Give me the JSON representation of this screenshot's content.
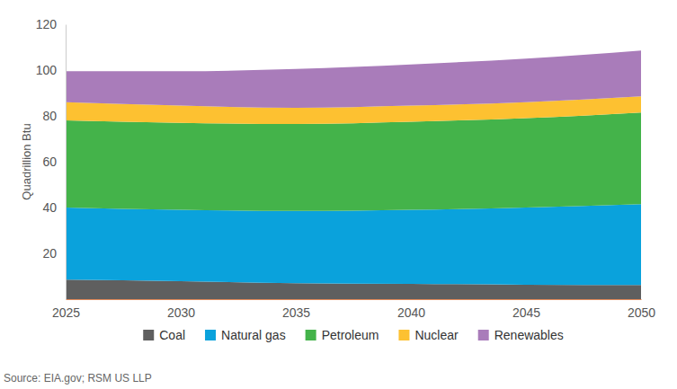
{
  "chart_data": {
    "type": "area",
    "stacked": true,
    "y_label": "Quadrillion Btu",
    "source": "Source: EIA.gov; RSM US LLP",
    "x": [
      2025,
      2030,
      2035,
      2040,
      2045,
      2050
    ],
    "xlim": [
      2025,
      2050
    ],
    "xticks": [
      2025,
      2030,
      2035,
      2040,
      2045,
      2050
    ],
    "ylim": [
      0,
      120
    ],
    "yticks": [
      20,
      40,
      60,
      80,
      100,
      120
    ],
    "grid": false,
    "legend": "bottom",
    "series": [
      {
        "name": "Coal",
        "color": "#5f5f5f",
        "values": [
          8.5,
          7.8,
          7.0,
          6.7,
          6.3,
          6.2
        ]
      },
      {
        "name": "Natural gas",
        "color": "#0aa2dc",
        "values": [
          31.5,
          31.2,
          31.5,
          32.3,
          33.7,
          35.3
        ]
      },
      {
        "name": "Petroleum",
        "color": "#44b34a",
        "values": [
          38.0,
          38.0,
          38.0,
          38.5,
          39.0,
          40.0
        ]
      },
      {
        "name": "Nuclear",
        "color": "#fdc131",
        "values": [
          8.0,
          7.5,
          7.0,
          7.0,
          7.0,
          7.0
        ]
      },
      {
        "name": "Renewables",
        "color": "#a97cba",
        "values": [
          13.5,
          15.0,
          17.0,
          18.0,
          19.0,
          20.0
        ]
      }
    ]
  }
}
